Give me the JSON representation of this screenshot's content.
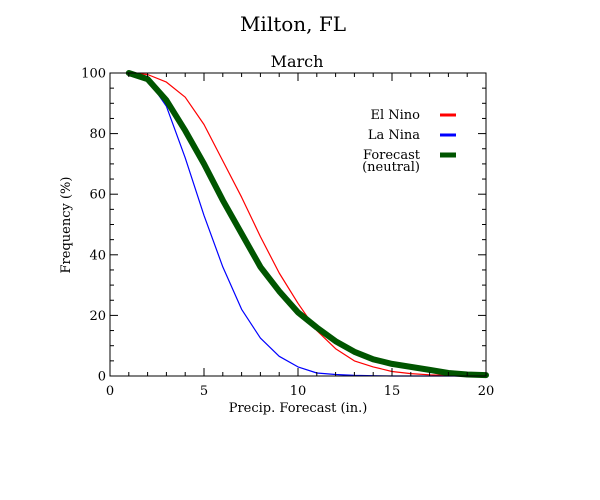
{
  "chart_data": {
    "type": "line",
    "title": "Milton, FL",
    "subtitle": "March",
    "xlabel": "Precip. Forecast (in.)",
    "ylabel": "Frequency (%)",
    "xlim": [
      0,
      20
    ],
    "ylim": [
      0,
      100
    ],
    "x_ticks": [
      0,
      5,
      10,
      15,
      20
    ],
    "y_ticks": [
      0,
      20,
      40,
      60,
      80,
      100
    ],
    "grid": false,
    "legend_position": "top-right",
    "series": [
      {
        "name": "El Nino",
        "color": "#ff0000",
        "x": [
          1,
          2,
          3,
          4,
          5,
          6,
          7,
          8,
          9,
          10,
          11,
          12,
          13,
          14,
          15,
          16,
          17,
          18,
          19,
          20
        ],
        "values": [
          100,
          99.5,
          97,
          92,
          83,
          71,
          59,
          46,
          34,
          24,
          15,
          9,
          5,
          3,
          1.5,
          0.8,
          0.4,
          0.2,
          0.1,
          0
        ]
      },
      {
        "name": "La Nina",
        "color": "#0000ff",
        "x": [
          1,
          2,
          3,
          4,
          5,
          6,
          7,
          8,
          9,
          10,
          11,
          12,
          13,
          14,
          15,
          16,
          17,
          18,
          19,
          20
        ],
        "values": [
          100,
          98,
          89,
          72,
          53,
          36,
          22,
          12.5,
          6.5,
          3,
          1,
          0.5,
          0.2,
          0.1,
          0,
          0,
          0,
          0,
          0,
          0
        ]
      },
      {
        "name": "Forecast (neutral)",
        "legend_lines": [
          "Forecast",
          "(neutral)"
        ],
        "color": "#005500",
        "x": [
          1,
          2,
          3,
          4,
          5,
          6,
          7,
          8,
          9,
          10,
          11,
          12,
          13,
          14,
          15,
          16,
          17,
          18,
          19,
          20
        ],
        "values": [
          100,
          98,
          91,
          81,
          70,
          58,
          47,
          36,
          28,
          21,
          16,
          11.5,
          8,
          5.5,
          4,
          3,
          2,
          1,
          0.5,
          0.3
        ]
      }
    ]
  }
}
